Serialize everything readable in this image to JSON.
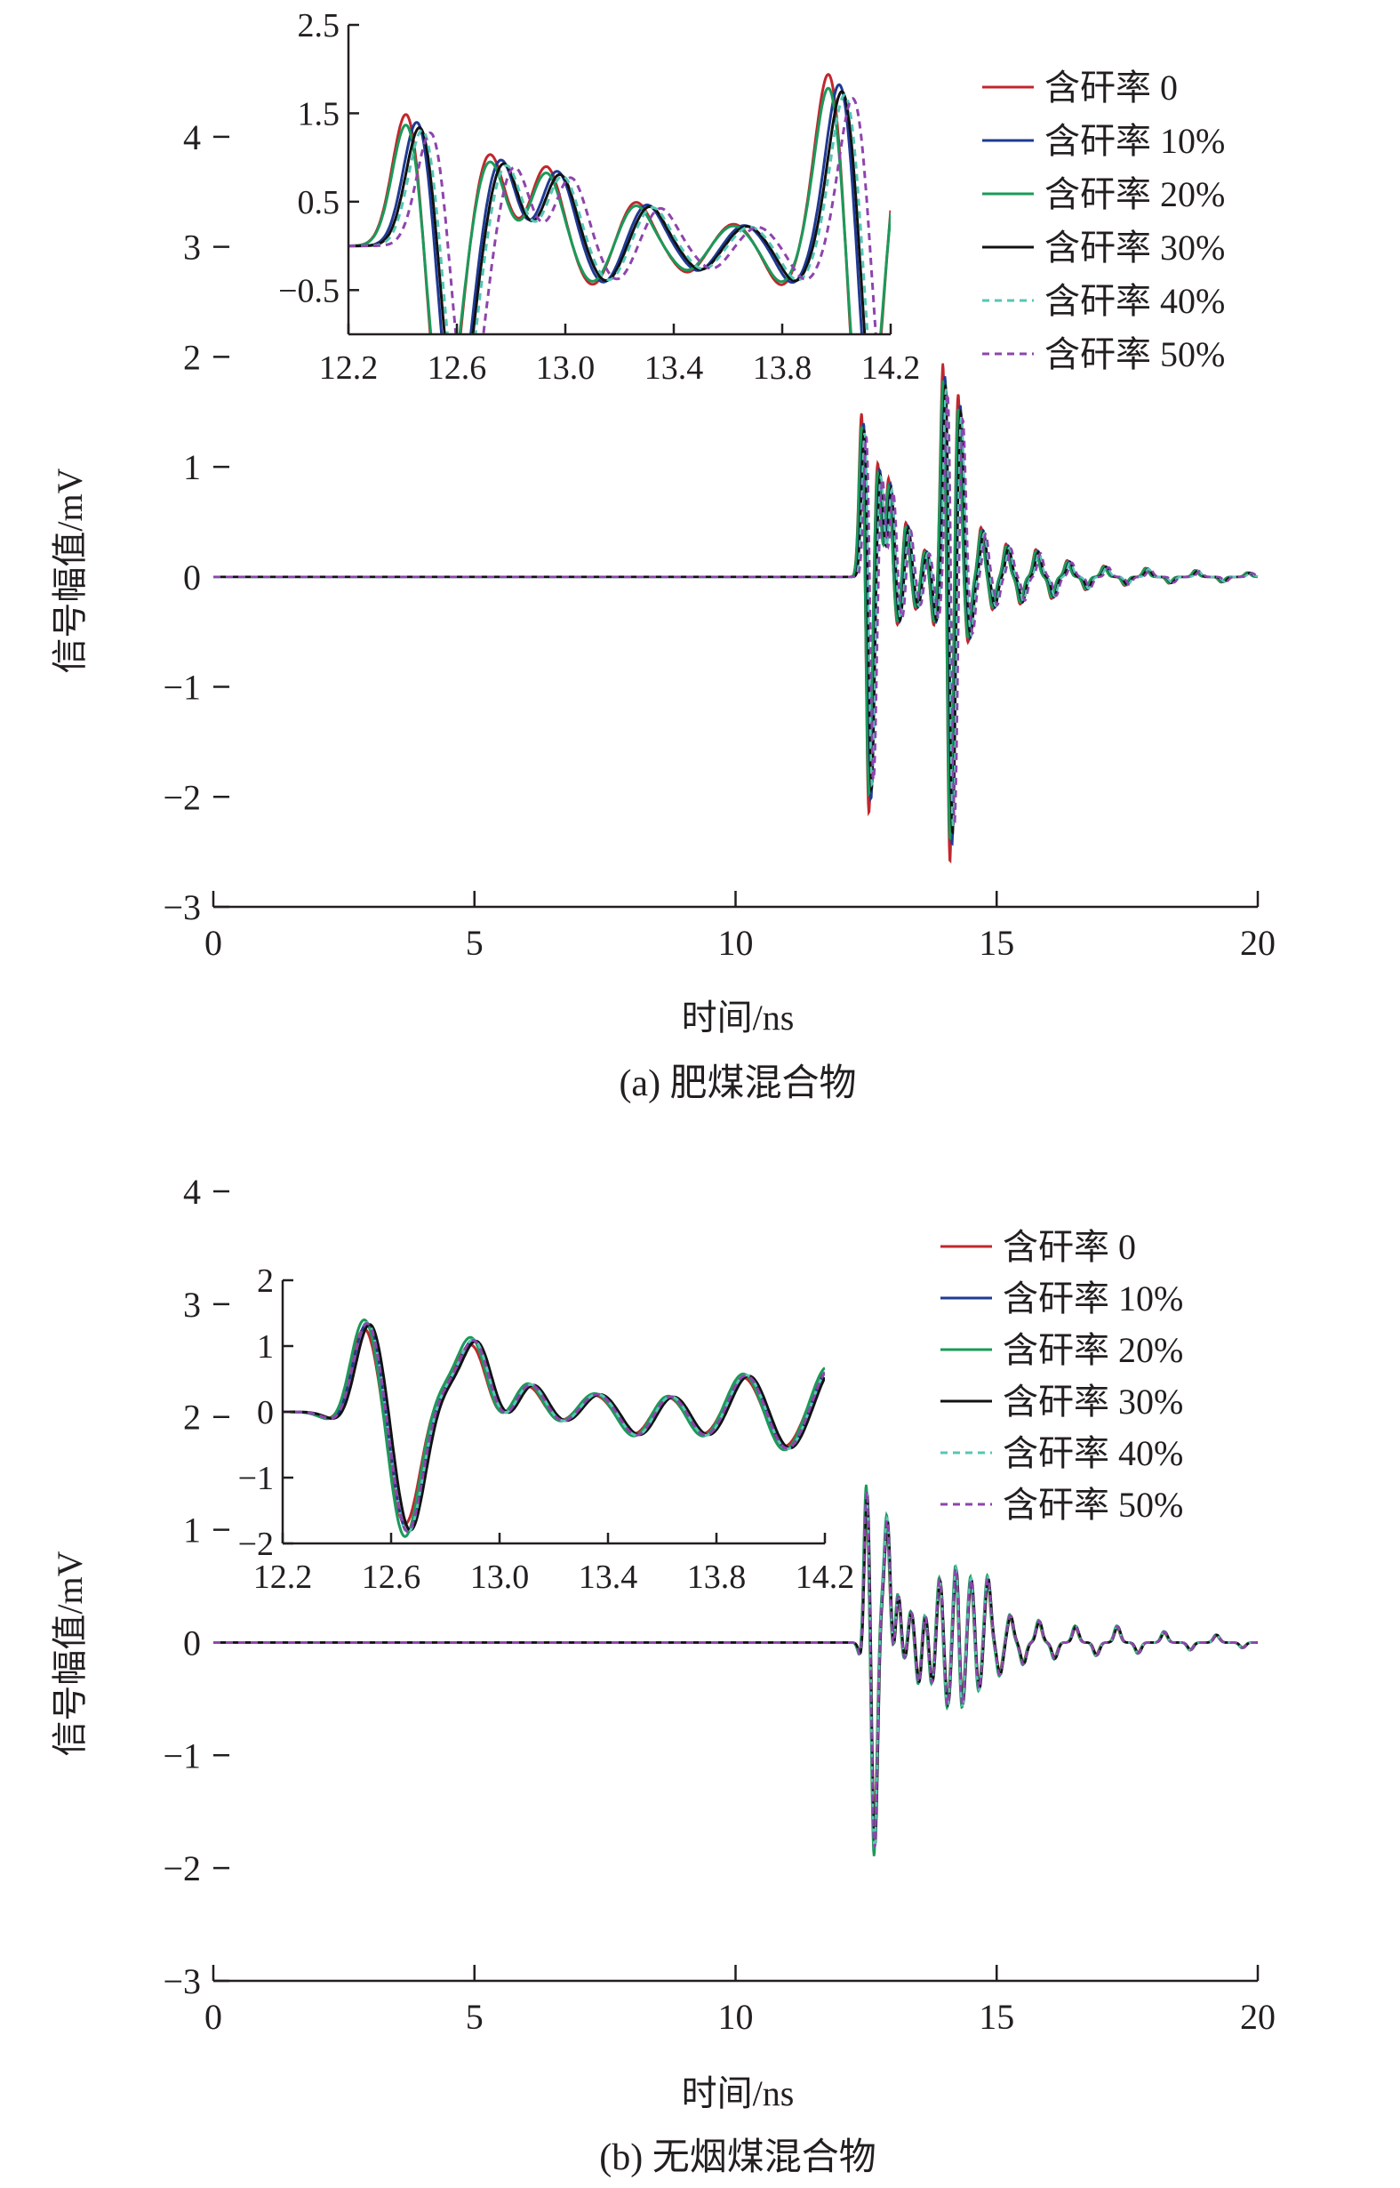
{
  "panels": [
    {
      "caption": "(a) 肥煤混合物",
      "xlabel": "时间/ns",
      "ylabel": "信号幅值/mV"
    },
    {
      "caption": "(b) 无烟煤混合物",
      "xlabel": "时间/ns",
      "ylabel": "信号幅值/mV"
    }
  ],
  "legend": [
    {
      "label": "含矸率 0",
      "color": "#c1272d",
      "dash": "solid"
    },
    {
      "label": "含矸率 10%",
      "color": "#1f3a93",
      "dash": "solid"
    },
    {
      "label": "含矸率 20%",
      "color": "#1a9a5a",
      "dash": "solid"
    },
    {
      "label": "含矸率 30%",
      "color": "#111111",
      "dash": "solid"
    },
    {
      "label": "含矸率 40%",
      "color": "#56c6b5",
      "dash": "dashed"
    },
    {
      "label": "含矸率 50%",
      "color": "#8e44ad",
      "dash": "dashed"
    }
  ],
  "chart_data": [
    {
      "type": "line",
      "panel": "(a) 肥煤混合物",
      "xlabel": "时间/ns",
      "ylabel": "信号幅值/mV",
      "xlim": [
        0,
        20
      ],
      "ylim": [
        -3,
        4.5
      ],
      "xticks": [
        0,
        5,
        10,
        15,
        20
      ],
      "yticks": [
        -3,
        -2,
        -1,
        0,
        1,
        2,
        3,
        4
      ],
      "grid": false,
      "legend_position": "top-right",
      "onset_ns": 12.2,
      "series": [
        {
          "name": "含矸率 0",
          "shift": 0.0,
          "amp": 1.0
        },
        {
          "name": "含矸率 10%",
          "shift": 0.04,
          "amp": 0.94
        },
        {
          "name": "含矸率 20%",
          "shift": 0.0,
          "amp": 0.92
        },
        {
          "name": "含矸率 30%",
          "shift": 0.05,
          "amp": 0.9
        },
        {
          "name": "含矸率 40%",
          "shift": 0.06,
          "amp": 0.88
        },
        {
          "name": "含矸率 50%",
          "shift": 0.09,
          "amp": 0.86
        }
      ],
      "peaks": [
        [
          12.42,
          1.6
        ],
        [
          12.55,
          -2.25
        ],
        [
          12.72,
          1.05
        ],
        [
          12.93,
          0.9
        ],
        [
          13.1,
          -0.45
        ],
        [
          13.26,
          0.5
        ],
        [
          13.45,
          -0.3
        ],
        [
          13.62,
          0.25
        ],
        [
          13.8,
          -0.45
        ],
        [
          13.98,
          2.15
        ],
        [
          14.1,
          -2.8
        ],
        [
          14.26,
          1.7
        ],
        [
          14.45,
          -0.6
        ],
        [
          14.7,
          0.45
        ],
        [
          14.92,
          -0.3
        ],
        [
          15.18,
          0.3
        ],
        [
          15.45,
          -0.25
        ],
        [
          15.75,
          0.25
        ],
        [
          16.05,
          -0.2
        ],
        [
          16.35,
          0.15
        ],
        [
          16.7,
          -0.12
        ],
        [
          17.05,
          0.1
        ],
        [
          17.45,
          -0.08
        ],
        [
          17.85,
          0.08
        ],
        [
          18.3,
          -0.06
        ],
        [
          18.8,
          0.06
        ],
        [
          19.3,
          -0.05
        ],
        [
          19.8,
          0.04
        ]
      ],
      "inset": {
        "xlim": [
          12.2,
          14.2
        ],
        "ylim": [
          -1.0,
          2.5
        ],
        "xticks": [
          12.2,
          12.6,
          13.0,
          13.4,
          13.8,
          14.2
        ],
        "yticks": [
          -0.5,
          0.5,
          1.5,
          2.5
        ]
      }
    },
    {
      "type": "line",
      "panel": "(b) 无烟煤混合物",
      "xlabel": "时间/ns",
      "ylabel": "信号幅值/mV",
      "xlim": [
        0,
        20
      ],
      "ylim": [
        -3,
        4
      ],
      "xticks": [
        0,
        5,
        10,
        15,
        20
      ],
      "yticks": [
        -3,
        -2,
        -1,
        0,
        1,
        2,
        3,
        4
      ],
      "grid": false,
      "legend_position": "right",
      "onset_ns": 12.2,
      "series": [
        {
          "name": "含矸率 0",
          "shift": 0.0,
          "amp": 0.9
        },
        {
          "name": "含矸率 10%",
          "shift": 0.01,
          "amp": 0.96
        },
        {
          "name": "含矸率 20%",
          "shift": 0.0,
          "amp": 1.0
        },
        {
          "name": "含矸率 30%",
          "shift": 0.02,
          "amp": 0.95
        },
        {
          "name": "含矸率 40%",
          "shift": 0.01,
          "amp": 0.97
        },
        {
          "name": "含矸率 50%",
          "shift": 0.01,
          "amp": 0.96
        }
      ],
      "peaks": [
        [
          12.3,
          0.0
        ],
        [
          12.42,
          -0.3
        ],
        [
          12.5,
          1.55
        ],
        [
          12.65,
          -1.95
        ],
        [
          12.78,
          0.3
        ],
        [
          12.9,
          1.15
        ],
        [
          13.0,
          -0.3
        ],
        [
          13.1,
          0.5
        ],
        [
          13.22,
          -0.2
        ],
        [
          13.35,
          0.3
        ],
        [
          13.5,
          -0.4
        ],
        [
          13.62,
          0.3
        ],
        [
          13.75,
          -0.4
        ],
        [
          13.9,
          0.6
        ],
        [
          14.05,
          -0.6
        ],
        [
          14.22,
          0.8
        ],
        [
          14.32,
          -0.7
        ],
        [
          14.5,
          0.6
        ],
        [
          14.65,
          -0.45
        ],
        [
          14.82,
          0.6
        ],
        [
          15.05,
          -0.3
        ],
        [
          15.25,
          0.25
        ],
        [
          15.5,
          -0.2
        ],
        [
          15.8,
          0.2
        ],
        [
          16.1,
          -0.15
        ],
        [
          16.5,
          0.15
        ],
        [
          16.9,
          -0.12
        ],
        [
          17.3,
          0.15
        ],
        [
          17.7,
          -0.1
        ],
        [
          18.2,
          0.1
        ],
        [
          18.7,
          -0.07
        ],
        [
          19.2,
          0.07
        ],
        [
          19.7,
          -0.05
        ]
      ],
      "inset": {
        "xlim": [
          12.2,
          14.2
        ],
        "ylim": [
          -2.0,
          2.0
        ],
        "xticks": [
          12.2,
          12.6,
          13.0,
          13.4,
          13.8,
          14.2
        ],
        "yticks": [
          -2,
          -1,
          0,
          1,
          2
        ]
      }
    }
  ]
}
